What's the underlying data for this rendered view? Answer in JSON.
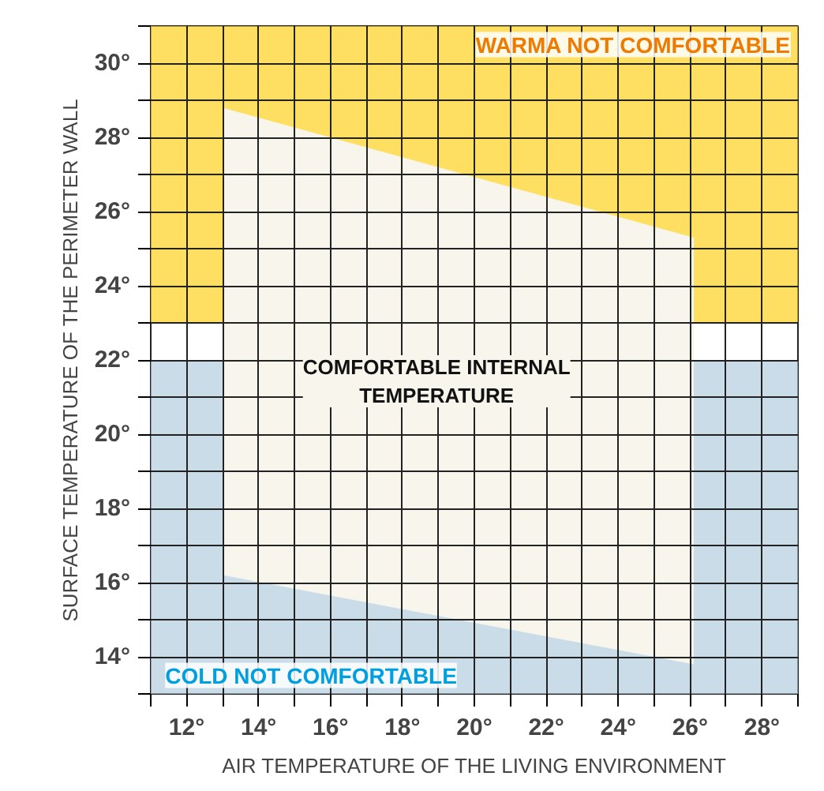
{
  "chart_data": {
    "type": "area",
    "xlabel": "AIR TEMPERATURE OF THE LIVING ENVIRONMENT",
    "ylabel": "SURFACE TEMPERATURE OF THE PERIMETER WALL",
    "series": [
      {
        "name": "COMFORTABLE INTERNAL TEMPERATURE",
        "x": [
          13,
          26.1
        ],
        "values": [
          null,
          null
        ],
        "upper": [
          28.8,
          25.3
        ],
        "lower": [
          16.2,
          13.8
        ]
      }
    ],
    "xlim": [
      11,
      29
    ],
    "ylim": [
      13,
      31
    ],
    "xticks": [
      {
        "value": 11,
        "label": null
      },
      {
        "value": 12,
        "label": "12°"
      },
      {
        "value": 13,
        "label": null
      },
      {
        "value": 14,
        "label": "14°"
      },
      {
        "value": 15,
        "label": null
      },
      {
        "value": 16,
        "label": "16°"
      },
      {
        "value": 17,
        "label": null
      },
      {
        "value": 18,
        "label": "18°"
      },
      {
        "value": 19,
        "label": null
      },
      {
        "value": 20,
        "label": "20°"
      },
      {
        "value": 21,
        "label": null
      },
      {
        "value": 22,
        "label": "22°"
      },
      {
        "value": 23,
        "label": null
      },
      {
        "value": 24,
        "label": "24°"
      },
      {
        "value": 25,
        "label": null
      },
      {
        "value": 26,
        "label": "26°"
      },
      {
        "value": 27,
        "label": null
      },
      {
        "value": 28,
        "label": "28°"
      },
      {
        "value": 29,
        "label": null
      }
    ],
    "yticks": [
      {
        "value": 13,
        "label": null
      },
      {
        "value": 14,
        "label": "14°"
      },
      {
        "value": 15,
        "label": null
      },
      {
        "value": 16,
        "label": "16°"
      },
      {
        "value": 17,
        "label": null
      },
      {
        "value": 18,
        "label": "18°"
      },
      {
        "value": 19,
        "label": null
      },
      {
        "value": 20,
        "label": "20°"
      },
      {
        "value": 21,
        "label": null
      },
      {
        "value": 22,
        "label": "22°"
      },
      {
        "value": 23,
        "label": null
      },
      {
        "value": 24,
        "label": "24°"
      },
      {
        "value": 25,
        "label": null
      },
      {
        "value": 26,
        "label": "26°"
      },
      {
        "value": 27,
        "label": null
      },
      {
        "value": 28,
        "label": "28°"
      },
      {
        "value": 29,
        "label": null
      },
      {
        "value": 30,
        "label": "30°"
      },
      {
        "value": 31,
        "label": null
      }
    ],
    "bands": [
      {
        "axis": "y",
        "from": 23,
        "to": 31,
        "label": "WARMA NOT COMFORTABLE",
        "color": "#ffd21f"
      },
      {
        "axis": "y",
        "from": 13,
        "to": 22,
        "label": "COLD NOT COMFORTABLE",
        "color": "#b5cde0"
      }
    ],
    "grid": true
  }
}
